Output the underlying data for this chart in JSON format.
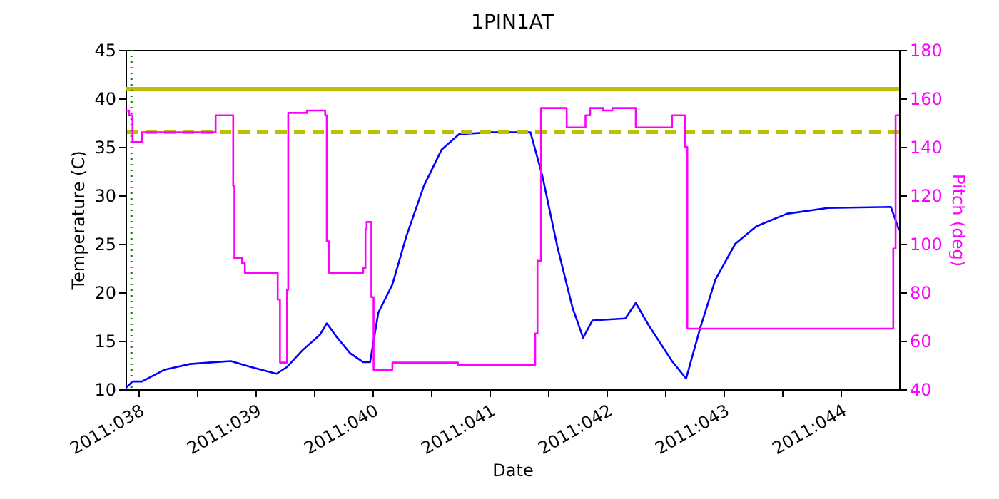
{
  "chart_data": {
    "type": "line",
    "title": "1PIN1AT",
    "xlabel": "Date",
    "ylabel": "Temperature (C)",
    "y2label": "Pitch (deg)",
    "xlim": [
      "2011-02-06T21:22",
      "2011-02-13T12:00"
    ],
    "xticks": [
      {
        "value": "2011-02-07",
        "label": "2011:038"
      },
      {
        "value": "2011-02-07T12:00",
        "label": null
      },
      {
        "value": "2011-02-08",
        "label": "2011:039"
      },
      {
        "value": "2011-02-08T12:00",
        "label": null
      },
      {
        "value": "2011-02-09",
        "label": "2011:040"
      },
      {
        "value": "2011-02-09T12:00",
        "label": null
      },
      {
        "value": "2011-02-10",
        "label": "2011:041"
      },
      {
        "value": "2011-02-10T12:00",
        "label": null
      },
      {
        "value": "2011-02-11",
        "label": "2011:042"
      },
      {
        "value": "2011-02-11T12:00",
        "label": null
      },
      {
        "value": "2011-02-12",
        "label": "2011:043"
      },
      {
        "value": "2011-02-12T12:00",
        "label": null
      },
      {
        "value": "2011-02-13",
        "label": "2011:044"
      }
    ],
    "ylim": [
      10,
      45
    ],
    "yticks": [
      10,
      15,
      20,
      25,
      30,
      35,
      40,
      45
    ],
    "y2lim": [
      40,
      180
    ],
    "y2ticks": [
      40,
      60,
      80,
      100,
      120,
      140,
      160,
      180
    ],
    "series": [
      {
        "color": "#0000ff",
        "x": [
          "2011-02-06T21:22",
          "2011-02-06T22:48",
          "2011-02-07T00:43",
          "2011-02-07T05:17",
          "2011-02-07T10:34",
          "2011-02-07T15:50",
          "2011-02-07T18:58",
          "2011-02-07T23:02",
          "2011-02-08T04:19",
          "2011-02-08T06:29",
          "2011-02-08T09:36",
          "2011-02-08T13:12",
          "2011-02-08T14:38",
          "2011-02-08T16:48",
          "2011-02-08T19:26",
          "2011-02-08T22:05",
          "2011-02-08T23:31",
          "2011-02-09T01:12",
          "2011-02-09T04:05",
          "2011-02-09T06:58",
          "2011-02-09T10:34",
          "2011-02-09T14:10",
          "2011-02-09T17:46",
          "2011-02-10T00:14",
          "2011-02-10T08:24",
          "2011-02-10T10:48",
          "2011-02-10T13:55",
          "2011-02-10T17:02",
          "2011-02-10T19:12",
          "2011-02-10T21:07",
          "2011-02-11T03:50",
          "2011-02-11T06:00",
          "2011-02-11T08:38",
          "2011-02-11T13:26",
          "2011-02-11T16:19",
          "2011-02-11T19:12",
          "2011-02-11T22:19",
          "2011-02-12T02:24",
          "2011-02-12T06:43",
          "2011-02-12T12:58",
          "2011-02-12T21:22",
          "2011-02-13T10:19",
          "2011-02-13T12:00"
        ],
        "values": [
          10.1,
          10.8,
          10.8,
          12.0,
          12.6,
          12.8,
          12.9,
          12.3,
          11.6,
          12.3,
          14.0,
          15.6,
          16.8,
          15.3,
          13.7,
          12.8,
          12.8,
          17.9,
          20.8,
          25.8,
          31.0,
          34.7,
          36.3,
          36.5,
          36.5,
          32.1,
          24.7,
          18.4,
          15.3,
          17.1,
          17.3,
          18.9,
          16.6,
          12.9,
          11.1,
          16.3,
          21.3,
          25.0,
          26.8,
          28.1,
          28.7,
          28.8,
          26.4
        ]
      },
      {
        "type": "step",
        "axis": "y2",
        "color": "#ff00ff",
        "x": [
          "2011-02-06T21:22",
          "2011-02-06T22:05",
          "2011-02-06T22:48",
          "2011-02-07T00:43",
          "2011-02-07T15:50",
          "2011-02-07T19:26",
          "2011-02-07T19:41",
          "2011-02-07T21:16",
          "2011-02-07T21:50",
          "2011-02-08T04:34",
          "2011-02-08T05:02",
          "2011-02-08T06:29",
          "2011-02-08T06:43",
          "2011-02-08T09:36",
          "2011-02-08T10:34",
          "2011-02-08T14:18",
          "2011-02-08T14:38",
          "2011-02-08T15:07",
          "2011-02-08T22:05",
          "2011-02-08T22:34",
          "2011-02-08T22:48",
          "2011-02-08T23:46",
          "2011-02-09T00:14",
          "2011-02-09T04:05",
          "2011-02-09T17:31",
          "2011-02-10T09:22",
          "2011-02-10T09:50",
          "2011-02-10T10:34",
          "2011-02-10T15:50",
          "2011-02-10T19:41",
          "2011-02-10T20:38",
          "2011-02-10T23:17",
          "2011-02-11T01:12",
          "2011-02-11T06:00",
          "2011-02-11T13:26",
          "2011-02-11T16:05",
          "2011-02-11T16:34",
          "2011-02-13T10:48",
          "2011-02-13T11:17",
          "2011-02-13T12:00"
        ],
        "values": [
          155,
          153,
          142,
          146,
          153,
          124,
          94,
          92,
          88,
          77,
          51,
          81,
          154,
          154,
          155,
          153,
          101,
          88,
          90,
          106,
          109,
          78,
          48,
          51,
          50,
          63,
          93,
          156,
          148,
          153,
          156,
          155,
          156,
          148,
          153,
          140,
          65,
          98,
          153,
          153
        ]
      }
    ],
    "ref_lines": [
      {
        "axis": "y",
        "value": 41,
        "color": "#bfbf00",
        "line_style": "solid"
      },
      {
        "axis": "y",
        "value": 36.5,
        "color": "#bfbf00",
        "line_style": "dashed"
      },
      {
        "axis": "x",
        "value": "2011-02-06T22:34",
        "color": "#008000",
        "line_style": "dotted"
      }
    ]
  }
}
